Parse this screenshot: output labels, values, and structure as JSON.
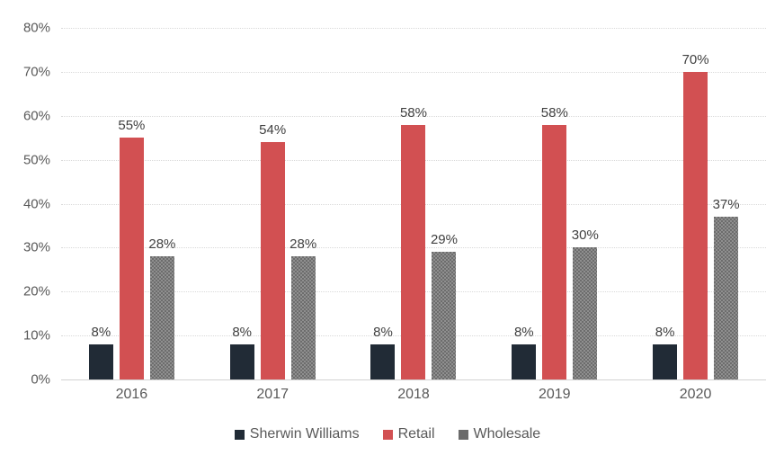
{
  "chart_data": {
    "type": "bar",
    "title": "",
    "categories": [
      "2016",
      "2017",
      "2018",
      "2019",
      "2020"
    ],
    "series": [
      {
        "name": "Sherwin Williams",
        "color": "#212B36",
        "pattern": "solid",
        "values": [
          8,
          8,
          8,
          8,
          8
        ],
        "labels": [
          "8%",
          "8%",
          "8%",
          "8%",
          "8%"
        ]
      },
      {
        "name": "Retail",
        "color": "#D25052",
        "pattern": "solid",
        "values": [
          55,
          54,
          58,
          58,
          70
        ],
        "labels": [
          "55%",
          "54%",
          "58%",
          "58%",
          "70%"
        ]
      },
      {
        "name": "Wholesale",
        "color": "#8F8F8F",
        "pattern": "dots",
        "dot_color": "#646464",
        "legend_color": "#6B6B6B",
        "values": [
          28,
          28,
          29,
          30,
          37
        ],
        "labels": [
          "28%",
          "28%",
          "29%",
          "30%",
          "37%"
        ]
      }
    ],
    "y_axis": {
      "min": 0,
      "max": 80,
      "step": 10,
      "tick_labels": [
        "0%",
        "10%",
        "20%",
        "30%",
        "40%",
        "50%",
        "60%",
        "70%",
        "80%"
      ]
    },
    "grid": true,
    "legend_position": "bottom"
  },
  "colors": {
    "background": "#FFFFFF",
    "gridline": "#D9D9D9",
    "axis_line": "#D2D2D2",
    "tick_label": "#595959",
    "data_label": "#404040",
    "legend_text": "#595959"
  }
}
